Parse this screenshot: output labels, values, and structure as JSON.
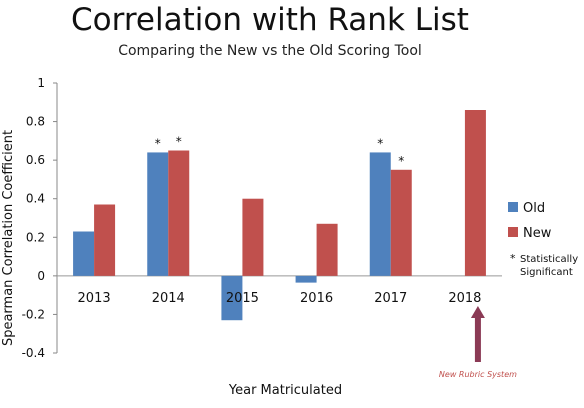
{
  "chart_data": {
    "type": "bar",
    "title": "Correlation with Rank List",
    "subtitle": "Comparing the New vs the Old Scoring Tool",
    "xlabel": "Year Matriculated",
    "ylabel": "Spearman Correlation Coefficient",
    "ylim": [
      -0.4,
      1
    ],
    "yticks": [
      "1",
      "0.8",
      "0.6",
      "0.4",
      "0.2",
      "0",
      "-0.2",
      "-0.4"
    ],
    "ytick_values": [
      1,
      0.8,
      0.6,
      0.4,
      0.2,
      0,
      -0.2,
      -0.4
    ],
    "categories": [
      "2013",
      "2014",
      "2015",
      "2016",
      "2017",
      "2018"
    ],
    "series": [
      {
        "name": "Old",
        "color": "#4f81bd",
        "values": [
          0.23,
          0.64,
          -0.23,
          -0.035,
          0.64,
          null
        ],
        "significant": [
          false,
          true,
          false,
          false,
          true,
          false
        ]
      },
      {
        "name": "New",
        "color": "#c0504d",
        "values": [
          0.37,
          0.65,
          0.4,
          0.27,
          0.55,
          0.86
        ],
        "significant": [
          false,
          true,
          false,
          false,
          true,
          false
        ]
      }
    ],
    "significance_marker": "*",
    "legend": {
      "placement": "right",
      "items": [
        "Old",
        "New"
      ],
      "note_marker": "*",
      "note_text_line1": "Statistically",
      "note_text_line2": "Significant"
    },
    "annotation": {
      "text": "New Rubric System",
      "category": "2018",
      "arrow_color": "#8b3a55",
      "text_color": "#c0504d"
    },
    "grid": false
  }
}
